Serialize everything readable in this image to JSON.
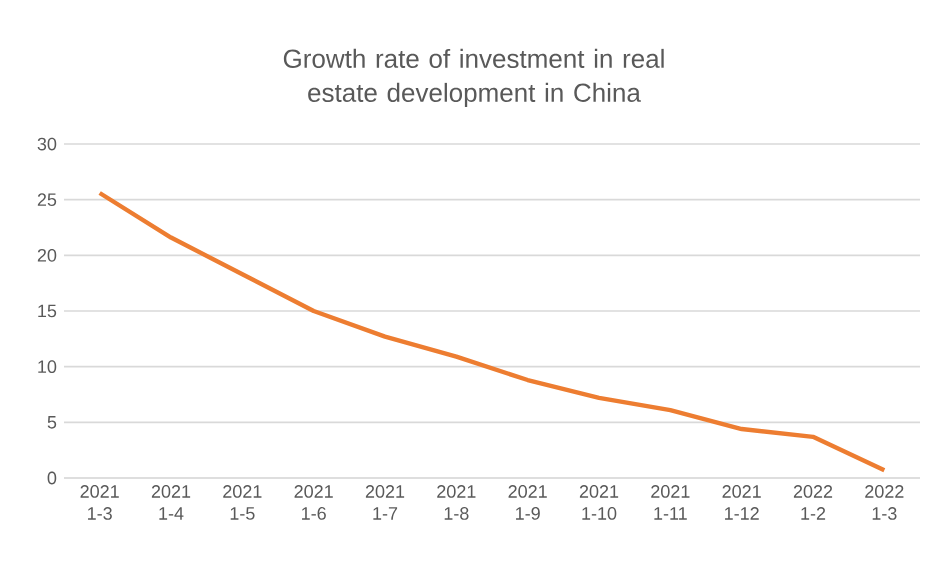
{
  "chart_data": {
    "type": "line",
    "title": "Growth rate of investment in real estate development in China",
    "categories": [
      "2021 1-3",
      "2021 1-4",
      "2021 1-5",
      "2021 1-6",
      "2021 1-7",
      "2021 1-8",
      "2021 1-9",
      "2021 1-10",
      "2021 1-11",
      "2021 1-12",
      "2022 1-2",
      "2022 1-3"
    ],
    "values": [
      25.6,
      21.6,
      18.3,
      15.0,
      12.7,
      10.9,
      8.8,
      7.2,
      6.1,
      4.4,
      3.7,
      0.7
    ],
    "color": "#ed7d31",
    "ylim": [
      0,
      30
    ],
    "yticks": [
      0,
      5,
      10,
      15,
      20,
      25,
      30
    ],
    "grid": "y",
    "marker": "none"
  }
}
